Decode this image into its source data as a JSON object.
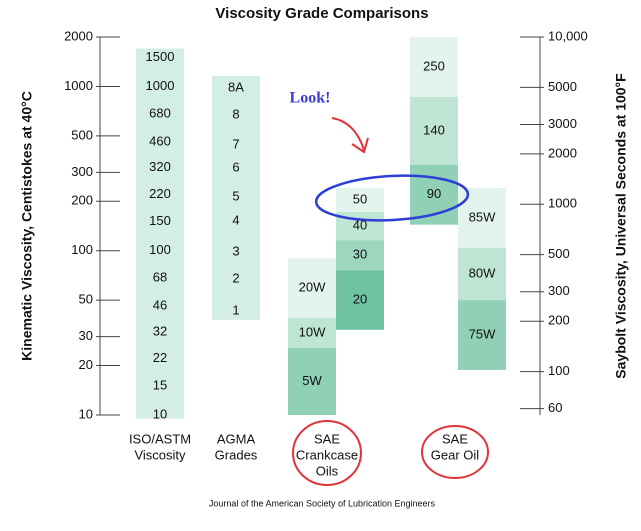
{
  "chart_data": {
    "type": "viscosity-grades",
    "title": "Viscosity Grade Comparisons",
    "ylabel": "Kinematic Viscosity, Centistokes at 40°C",
    "y2label": "Saybolt Viscosity, Universal Seconds at 100°F",
    "source": "Journal of the American Society of Lubrication Engineers",
    "annotation": "Look!",
    "log_scale": true,
    "ylim": [
      10,
      2000
    ],
    "yticks": [
      2000,
      1000,
      500,
      300,
      200,
      100,
      50,
      30,
      20,
      10
    ],
    "y2lim": [
      55,
      10000
    ],
    "y2ticks": [
      {
        "value": 10000,
        "label": "10,000"
      },
      5000,
      3000,
      2000,
      1000,
      500,
      300,
      200,
      100,
      60
    ],
    "groups": [
      {
        "label": [
          "ISO/ASTM",
          "Viscosity"
        ],
        "columns": [
          {
            "range": [
              9.5,
              1700
            ],
            "color": "#d3eee3",
            "grades": [
              {
                "label": "1500",
                "value": 1500
              },
              {
                "label": "1000",
                "value": 1000
              },
              {
                "label": "680",
                "value": 680
              },
              {
                "label": "460",
                "value": 460
              },
              {
                "label": "320",
                "value": 320
              },
              {
                "label": "220",
                "value": 220
              },
              {
                "label": "150",
                "value": 150
              },
              {
                "label": "100",
                "value": 100
              },
              {
                "label": "68",
                "value": 68
              },
              {
                "label": "46",
                "value": 46
              },
              {
                "label": "32",
                "value": 32
              },
              {
                "label": "22",
                "value": 22
              },
              {
                "label": "15",
                "value": 15
              },
              {
                "label": "10",
                "value": 10
              }
            ]
          }
        ]
      },
      {
        "label": [
          "AGMA",
          "Grades"
        ],
        "columns": [
          {
            "range": [
              38,
              1160
            ],
            "color": "#d3eee3",
            "grades": [
              {
                "label": "8A",
                "value": 980
              },
              {
                "label": "8",
                "value": 670
              },
              {
                "label": "7",
                "value": 440
              },
              {
                "label": "6",
                "value": 319
              },
              {
                "label": "5",
                "value": 212
              },
              {
                "label": "4",
                "value": 152
              },
              {
                "label": "3",
                "value": 98
              },
              {
                "label": "2",
                "value": 67
              },
              {
                "label": "1",
                "value": 43
              }
            ]
          }
        ]
      },
      {
        "label": [
          "SAE",
          "Crankcase",
          "Oils"
        ],
        "columns": [
          {
            "bands": [
              {
                "label": "20W",
                "low": 39,
                "high": 90,
                "color": "#e3f4ed"
              },
              {
                "label": "10W",
                "low": 25.6,
                "high": 39,
                "color": "#bfe5d5"
              },
              {
                "label": "5W",
                "low": 10,
                "high": 25.6,
                "color": "#8fd0b6"
              }
            ]
          },
          {
            "bands": [
              {
                "label": "50",
                "low": 172,
                "high": 241,
                "color": "#e3f4ed"
              },
              {
                "label": "40",
                "low": 116,
                "high": 172,
                "color": "#bfe5d5"
              },
              {
                "label": "30",
                "low": 76,
                "high": 116,
                "color": "#9dd6bf"
              },
              {
                "label": "20",
                "low": 33,
                "high": 76,
                "color": "#6fc2a2"
              }
            ]
          }
        ]
      },
      {
        "label": [
          "SAE",
          "Gear Oil"
        ],
        "columns": [
          {
            "bands": [
              {
                "label": "250",
                "low": 863,
                "high": 2000,
                "color": "#e3f4ed"
              },
              {
                "label": "140",
                "low": 333,
                "high": 863,
                "color": "#bfe5d5"
              },
              {
                "label": "90",
                "low": 144,
                "high": 333,
                "color": "#8fd0b6"
              }
            ]
          },
          {
            "bands": [
              {
                "label": "85W",
                "low": 104,
                "high": 241,
                "color": "#e3f4ed"
              },
              {
                "label": "80W",
                "low": 50,
                "high": 104,
                "color": "#bfe5d5"
              },
              {
                "label": "75W",
                "low": 18.8,
                "high": 50,
                "color": "#8fd0b6"
              }
            ]
          }
        ]
      }
    ]
  }
}
